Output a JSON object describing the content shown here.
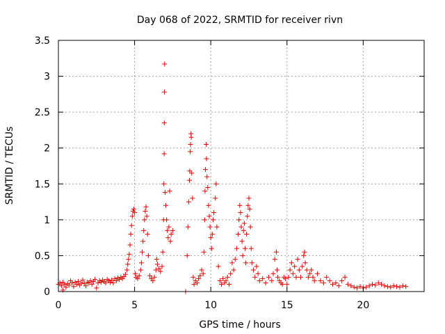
{
  "chart_data": {
    "type": "scatter",
    "title": "Day 068 of 2022, SRMTID for receiver rivn",
    "xlabel": "GPS time / hours",
    "ylabel": "SRMTID / TECUs",
    "xlim": [
      0,
      24
    ],
    "ylim": [
      0,
      3.5
    ],
    "x_ticks": [
      0,
      5,
      10,
      15,
      20
    ],
    "x_tick_labels": [
      "0",
      "5",
      "10",
      "15",
      "20"
    ],
    "y_ticks": [
      0,
      0.5,
      1,
      1.5,
      2,
      2.5,
      3,
      3.5
    ],
    "y_tick_labels": [
      "0",
      "0.5",
      "1",
      "1.5",
      "2",
      "2.5",
      "3",
      "3.5"
    ],
    "grid": true,
    "marker": "+",
    "color": "#e00000",
    "series": [
      {
        "name": "SRMTID",
        "points": [
          [
            0.0,
            0.1
          ],
          [
            0.1,
            0.12
          ],
          [
            0.2,
            0.08
          ],
          [
            0.3,
            0.02
          ],
          [
            0.3,
            0.13
          ],
          [
            0.4,
            0.1
          ],
          [
            0.5,
            0.06
          ],
          [
            0.6,
            0.11
          ],
          [
            0.7,
            0.09
          ],
          [
            0.8,
            0.15
          ],
          [
            0.9,
            0.12
          ],
          [
            1.0,
            0.07
          ],
          [
            1.1,
            0.13
          ],
          [
            1.2,
            0.1
          ],
          [
            1.3,
            0.14
          ],
          [
            1.4,
            0.09
          ],
          [
            1.5,
            0.12
          ],
          [
            1.6,
            0.16
          ],
          [
            1.7,
            0.11
          ],
          [
            1.8,
            0.08
          ],
          [
            1.9,
            0.13
          ],
          [
            2.0,
            0.12
          ],
          [
            2.1,
            0.15
          ],
          [
            2.2,
            0.1
          ],
          [
            2.3,
            0.14
          ],
          [
            2.4,
            0.17
          ],
          [
            2.5,
            0.05
          ],
          [
            2.6,
            0.12
          ],
          [
            2.7,
            0.15
          ],
          [
            2.8,
            0.13
          ],
          [
            2.9,
            0.16
          ],
          [
            3.0,
            0.14
          ],
          [
            3.1,
            0.12
          ],
          [
            3.2,
            0.17
          ],
          [
            3.3,
            0.15
          ],
          [
            3.4,
            0.13
          ],
          [
            3.5,
            0.16
          ],
          [
            3.6,
            0.12
          ],
          [
            3.7,
            0.18
          ],
          [
            3.8,
            0.15
          ],
          [
            3.9,
            0.19
          ],
          [
            4.0,
            0.17
          ],
          [
            4.1,
            0.2
          ],
          [
            4.2,
            0.18
          ],
          [
            4.3,
            0.21
          ],
          [
            4.4,
            0.24
          ],
          [
            4.5,
            0.3
          ],
          [
            4.55,
            0.38
          ],
          [
            4.6,
            0.45
          ],
          [
            4.65,
            0.52
          ],
          [
            4.7,
            0.65
          ],
          [
            4.75,
            0.8
          ],
          [
            4.8,
            0.92
          ],
          [
            4.85,
            1.05
          ],
          [
            4.9,
            1.12
          ],
          [
            4.95,
            1.15
          ],
          [
            5.0,
            1.1
          ],
          [
            5.05,
            0.25
          ],
          [
            5.1,
            0.2
          ],
          [
            5.2,
            0.18
          ],
          [
            5.3,
            0.22
          ],
          [
            5.4,
            0.3
          ],
          [
            5.45,
            0.4
          ],
          [
            5.5,
            0.55
          ],
          [
            5.55,
            0.7
          ],
          [
            5.6,
            0.85
          ],
          [
            5.65,
            1.0
          ],
          [
            5.7,
            1.12
          ],
          [
            5.75,
            1.18
          ],
          [
            5.8,
            1.05
          ],
          [
            5.85,
            0.8
          ],
          [
            5.9,
            0.5
          ],
          [
            6.0,
            0.22
          ],
          [
            6.1,
            0.18
          ],
          [
            6.2,
            0.15
          ],
          [
            6.3,
            0.2
          ],
          [
            6.4,
            0.3
          ],
          [
            6.45,
            0.45
          ],
          [
            6.5,
            0.38
          ],
          [
            6.6,
            0.32
          ],
          [
            6.7,
            0.28
          ],
          [
            6.8,
            0.35
          ],
          [
            6.85,
            0.55
          ],
          [
            6.9,
            1.0
          ],
          [
            6.92,
            1.5
          ],
          [
            6.94,
            1.92
          ],
          [
            6.95,
            2.35
          ],
          [
            6.96,
            2.78
          ],
          [
            6.97,
            3.17
          ],
          [
            7.0,
            1.38
          ],
          [
            7.05,
            1.2
          ],
          [
            7.1,
            1.0
          ],
          [
            7.15,
            0.85
          ],
          [
            7.2,
            0.75
          ],
          [
            7.25,
            0.9
          ],
          [
            7.3,
            1.4
          ],
          [
            7.35,
            0.7
          ],
          [
            7.4,
            0.8
          ],
          [
            7.5,
            0.85
          ],
          [
            8.35,
            0.0
          ],
          [
            8.45,
            0.5
          ],
          [
            8.5,
            0.9
          ],
          [
            8.55,
            1.25
          ],
          [
            8.6,
            1.55
          ],
          [
            8.62,
            1.68
          ],
          [
            8.65,
            1.95
          ],
          [
            8.67,
            2.05
          ],
          [
            8.7,
            2.2
          ],
          [
            8.72,
            2.15
          ],
          [
            8.75,
            1.65
          ],
          [
            8.8,
            1.3
          ],
          [
            8.85,
            0.2
          ],
          [
            8.9,
            0.1
          ],
          [
            9.0,
            0.15
          ],
          [
            9.1,
            0.12
          ],
          [
            9.2,
            0.18
          ],
          [
            9.3,
            0.22
          ],
          [
            9.4,
            0.3
          ],
          [
            9.5,
            0.25
          ],
          [
            9.55,
            0.55
          ],
          [
            9.6,
            1.0
          ],
          [
            9.62,
            1.4
          ],
          [
            9.65,
            1.7
          ],
          [
            9.7,
            2.05
          ],
          [
            9.72,
            1.85
          ],
          [
            9.75,
            1.6
          ],
          [
            9.8,
            1.45
          ],
          [
            9.85,
            1.2
          ],
          [
            9.9,
            1.05
          ],
          [
            9.95,
            0.9
          ],
          [
            10.0,
            0.75
          ],
          [
            10.05,
            0.6
          ],
          [
            10.1,
            0.8
          ],
          [
            10.15,
            1.0
          ],
          [
            10.2,
            1.1
          ],
          [
            10.3,
            1.3
          ],
          [
            10.35,
            1.5
          ],
          [
            10.4,
            0.9
          ],
          [
            10.5,
            0.35
          ],
          [
            10.6,
            0.15
          ],
          [
            10.7,
            0.1
          ],
          [
            10.8,
            0.18
          ],
          [
            10.9,
            0.12
          ],
          [
            11.0,
            0.15
          ],
          [
            11.1,
            0.2
          ],
          [
            11.2,
            0.1
          ],
          [
            11.3,
            0.25
          ],
          [
            11.4,
            0.4
          ],
          [
            11.5,
            0.3
          ],
          [
            11.6,
            0.45
          ],
          [
            11.7,
            0.6
          ],
          [
            11.8,
            0.8
          ],
          [
            11.85,
            1.0
          ],
          [
            11.9,
            1.2
          ],
          [
            11.95,
            1.1
          ],
          [
            12.0,
            0.9
          ],
          [
            12.05,
            0.7
          ],
          [
            12.1,
            0.5
          ],
          [
            12.15,
            0.85
          ],
          [
            12.2,
            0.95
          ],
          [
            12.25,
            0.6
          ],
          [
            12.3,
            0.4
          ],
          [
            12.35,
            0.8
          ],
          [
            12.4,
            1.05
          ],
          [
            12.45,
            1.2
          ],
          [
            12.5,
            1.3
          ],
          [
            12.55,
            1.15
          ],
          [
            12.6,
            0.9
          ],
          [
            12.65,
            0.6
          ],
          [
            12.7,
            0.4
          ],
          [
            12.8,
            0.3
          ],
          [
            12.9,
            0.2
          ],
          [
            13.0,
            0.35
          ],
          [
            13.1,
            0.25
          ],
          [
            13.2,
            0.15
          ],
          [
            13.4,
            0.18
          ],
          [
            13.6,
            0.12
          ],
          [
            13.8,
            0.2
          ],
          [
            14.0,
            0.15
          ],
          [
            14.1,
            0.25
          ],
          [
            14.2,
            0.45
          ],
          [
            14.3,
            0.55
          ],
          [
            14.35,
            0.3
          ],
          [
            14.4,
            0.2
          ],
          [
            14.5,
            0.15
          ],
          [
            14.6,
            0.12
          ],
          [
            14.7,
            0.1
          ],
          [
            14.8,
            0.2
          ],
          [
            14.9,
            0.18
          ],
          [
            15.0,
            0.1
          ],
          [
            15.1,
            0.2
          ],
          [
            15.2,
            0.3
          ],
          [
            15.3,
            0.4
          ],
          [
            15.4,
            0.25
          ],
          [
            15.5,
            0.35
          ],
          [
            15.6,
            0.2
          ],
          [
            15.7,
            0.45
          ],
          [
            15.8,
            0.3
          ],
          [
            15.9,
            0.2
          ],
          [
            16.0,
            0.35
          ],
          [
            16.1,
            0.5
          ],
          [
            16.15,
            0.55
          ],
          [
            16.2,
            0.4
          ],
          [
            16.3,
            0.3
          ],
          [
            16.4,
            0.2
          ],
          [
            16.5,
            0.25
          ],
          [
            16.6,
            0.3
          ],
          [
            16.7,
            0.2
          ],
          [
            16.8,
            0.15
          ],
          [
            17.0,
            0.25
          ],
          [
            17.2,
            0.15
          ],
          [
            17.4,
            0.12
          ],
          [
            17.6,
            0.2
          ],
          [
            17.8,
            0.15
          ],
          [
            18.0,
            0.1
          ],
          [
            18.2,
            0.12
          ],
          [
            18.4,
            0.08
          ],
          [
            18.6,
            0.15
          ],
          [
            18.8,
            0.2
          ],
          [
            19.0,
            0.1
          ],
          [
            19.2,
            0.08
          ],
          [
            19.4,
            0.06
          ],
          [
            19.6,
            0.05
          ],
          [
            19.8,
            0.07
          ],
          [
            20.0,
            0.05
          ],
          [
            20.2,
            0.06
          ],
          [
            20.4,
            0.08
          ],
          [
            20.6,
            0.1
          ],
          [
            20.8,
            0.09
          ],
          [
            21.0,
            0.12
          ],
          [
            21.2,
            0.1
          ],
          [
            21.4,
            0.08
          ],
          [
            21.6,
            0.07
          ],
          [
            21.8,
            0.06
          ],
          [
            22.0,
            0.08
          ],
          [
            22.2,
            0.07
          ],
          [
            22.4,
            0.06
          ],
          [
            22.6,
            0.08
          ],
          [
            22.8,
            0.07
          ]
        ]
      }
    ]
  }
}
